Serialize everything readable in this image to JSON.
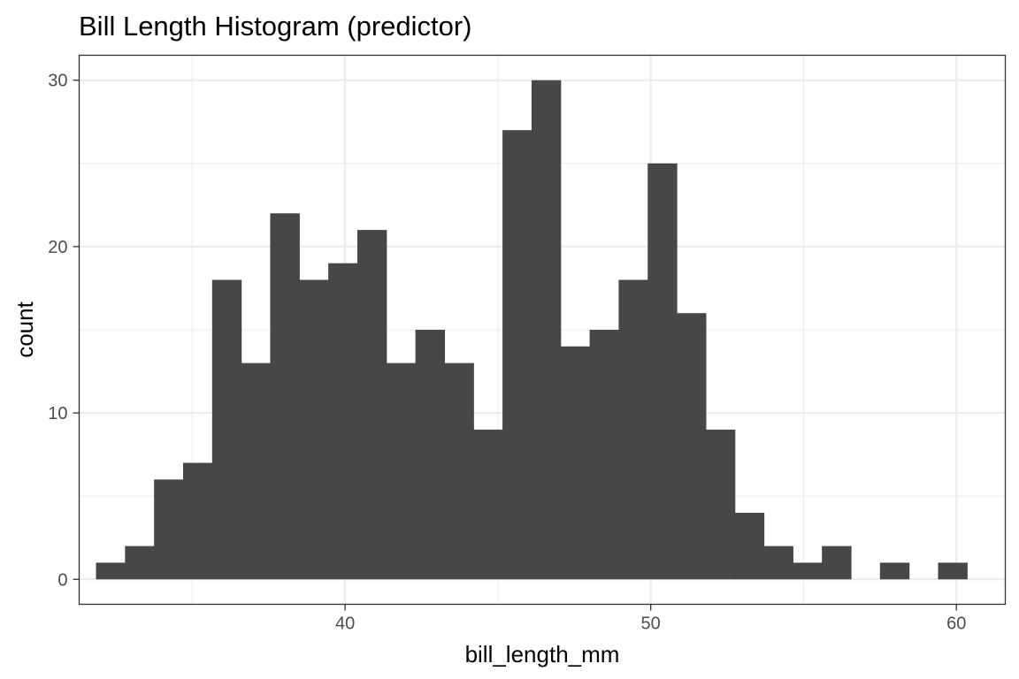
{
  "chart_data": {
    "type": "bar",
    "title": "Bill Length Histogram (predictor)",
    "xlabel": "bill_length_mm",
    "ylabel": "count",
    "xlim": [
      31.3,
      61.6
    ],
    "ylim": [
      -1.5,
      31.5
    ],
    "x_ticks": [
      40,
      50,
      60
    ],
    "y_ticks": [
      0,
      10,
      20,
      30
    ],
    "x_minor_ticks": [
      35,
      45,
      55
    ],
    "y_minor_ticks": [
      5,
      15,
      25
    ],
    "bin_width": 0.95,
    "bin_start": 31.85,
    "values": [
      1,
      2,
      6,
      7,
      18,
      13,
      22,
      18,
      19,
      21,
      13,
      15,
      13,
      9,
      27,
      30,
      14,
      15,
      18,
      25,
      16,
      9,
      4,
      2,
      1,
      2,
      0,
      1,
      0,
      1
    ],
    "grid": true,
    "legend": "none",
    "bar_color": "#474747",
    "grid_color": "#ebebeb"
  }
}
